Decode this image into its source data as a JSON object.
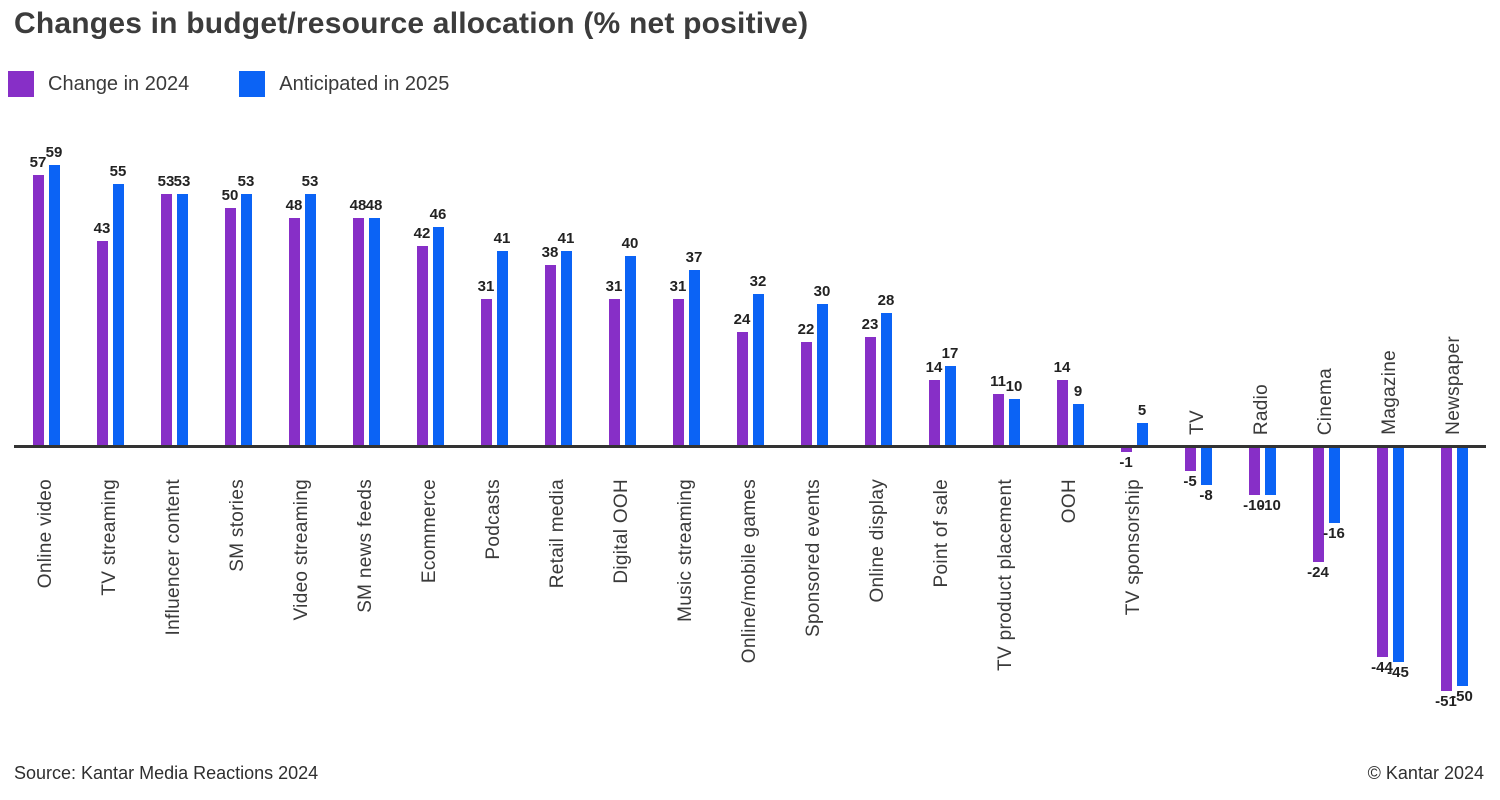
{
  "chart_data": {
    "type": "bar",
    "title": "Changes in budget/resource allocation (% net positive)",
    "categories": [
      "Online video",
      "TV streaming",
      "Influencer content",
      "SM stories",
      "Video streaming",
      "SM news feeds",
      "Ecommerce",
      "Podcasts",
      "Retail media",
      "Digital OOH",
      "Music streaming",
      "Online/mobile games",
      "Sponsored events",
      "Online display",
      "Point of sale",
      "TV product placement",
      "OOH",
      "TV sponsorship",
      "TV",
      "Radio",
      "Cinema",
      "Magazine",
      "Newspaper"
    ],
    "series": [
      {
        "name": "Change in 2024",
        "color": "#872FC7",
        "values": [
          57,
          43,
          53,
          50,
          48,
          48,
          42,
          31,
          38,
          31,
          31,
          24,
          22,
          23,
          14,
          11,
          14,
          -1,
          -5,
          -10,
          -24,
          -44,
          -51
        ]
      },
      {
        "name": "Anticipated in 2025",
        "color": "#0B63F5",
        "values": [
          59,
          55,
          53,
          53,
          53,
          48,
          46,
          41,
          41,
          40,
          37,
          32,
          30,
          28,
          17,
          10,
          9,
          5,
          -8,
          -10,
          -16,
          -45,
          -50
        ]
      }
    ],
    "ylim": [
      -51,
      59
    ],
    "grid": false,
    "legend_position": "top-left",
    "axis_style": "zero-baseline-only",
    "value_labels": "on-bar-ends"
  },
  "footer": {
    "source": "Source: Kantar Media Reactions 2024",
    "copyright": "© Kantar 2024"
  }
}
